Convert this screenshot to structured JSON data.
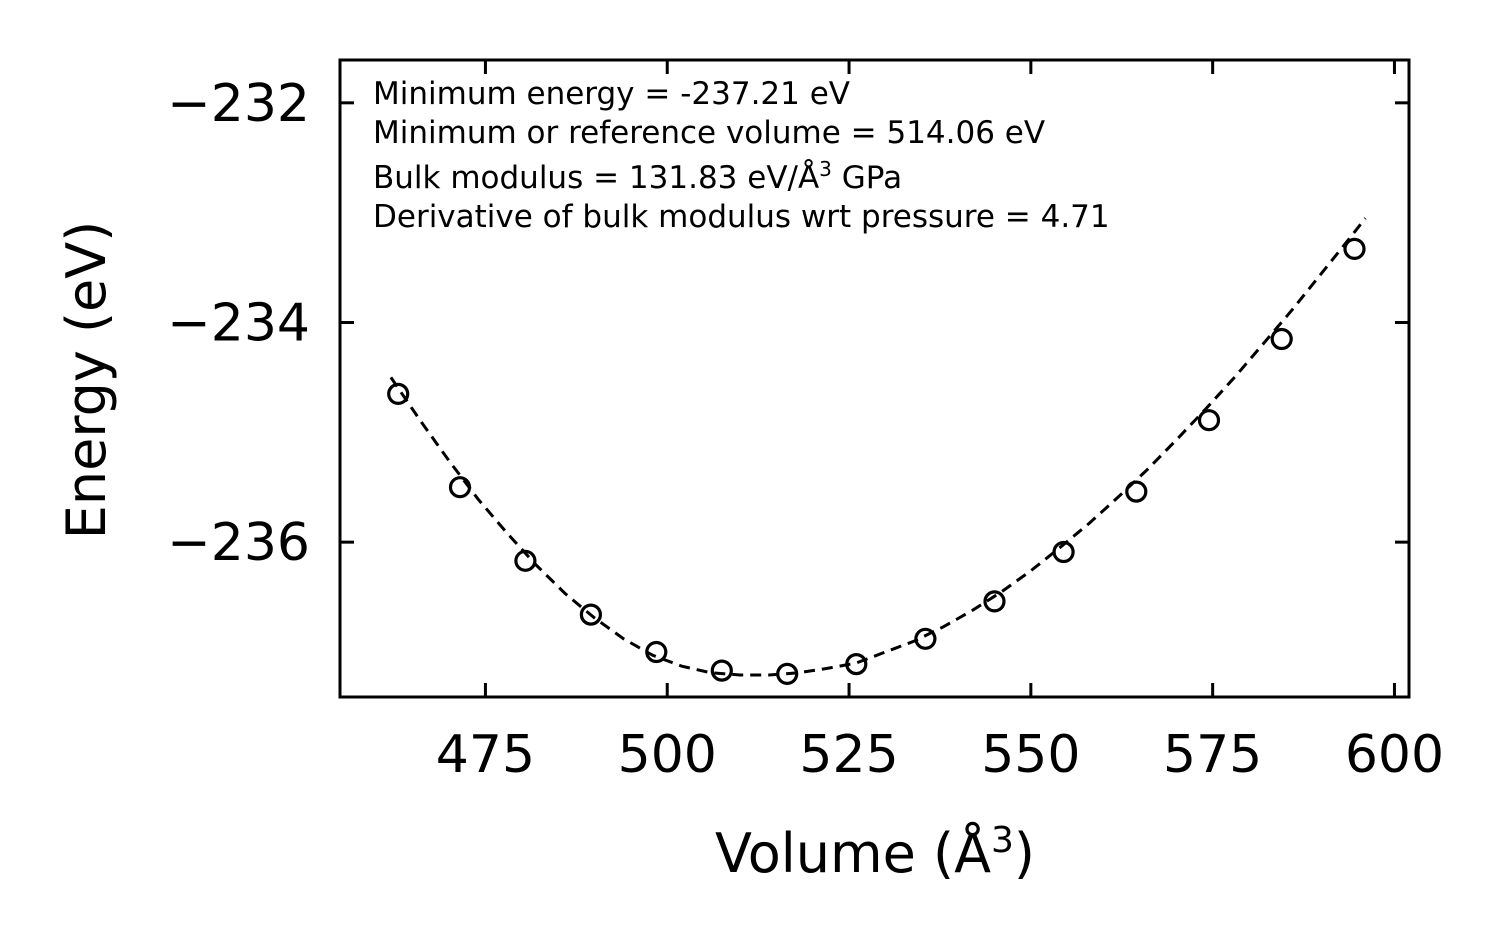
{
  "chart_data": {
    "type": "scatter",
    "xlabel": "Volume (Å",
    "xlabel_sup": "3",
    "xlabel_suffix": ")",
    "ylabel": "Energy (eV)",
    "xlim": [
      455,
      602
    ],
    "ylim": [
      -237.41,
      -231.61
    ],
    "xticks": [
      475,
      500,
      525,
      550,
      575,
      600
    ],
    "yticks": [
      -232,
      -234,
      -236
    ],
    "ytick_labels": [
      "−232",
      "−234",
      "−236"
    ],
    "grid": false,
    "series": [
      {
        "name": "data",
        "style": "open-circle",
        "x": [
          463,
          471.5,
          480.5,
          489.5,
          498.5,
          507.5,
          516.5,
          526,
          535.5,
          545,
          554.5,
          564.5,
          574.5,
          584.5,
          594.5
        ],
        "y": [
          -234.65,
          -235.5,
          -236.17,
          -236.66,
          -237.0,
          -237.17,
          -237.2,
          -237.11,
          -236.88,
          -236.54,
          -236.09,
          -235.54,
          -234.89,
          -234.15,
          -233.33
        ]
      },
      {
        "name": "fit",
        "style": "dashed-line",
        "x": [
          462,
          466,
          470,
          474,
          478,
          482,
          486,
          490,
          494,
          498,
          502,
          506,
          510,
          514,
          518,
          522,
          526,
          530,
          534,
          538,
          542,
          546,
          550,
          554,
          558,
          562,
          566,
          570,
          574,
          578,
          582,
          586,
          590,
          594,
          596
        ],
        "y": [
          -234.5,
          -234.89,
          -235.26,
          -235.61,
          -235.92,
          -236.21,
          -236.47,
          -236.69,
          -236.88,
          -237.03,
          -237.13,
          -237.19,
          -237.21,
          -237.21,
          -237.19,
          -237.15,
          -237.1,
          -237.0,
          -236.9,
          -236.77,
          -236.62,
          -236.45,
          -236.26,
          -236.05,
          -235.83,
          -235.59,
          -235.34,
          -235.07,
          -234.79,
          -234.5,
          -234.19,
          -233.88,
          -233.55,
          -233.22,
          -233.05
        ]
      }
    ],
    "annotations": [
      "Minimum energy = -237.21 eV",
      "Minimum or reference volume = 514.06 eV",
      "Bulk modulus = 131.83 eV/Å",
      "3",
      " GPa",
      "Derivative of bulk modulus wrt pressure = 4.71"
    ]
  }
}
